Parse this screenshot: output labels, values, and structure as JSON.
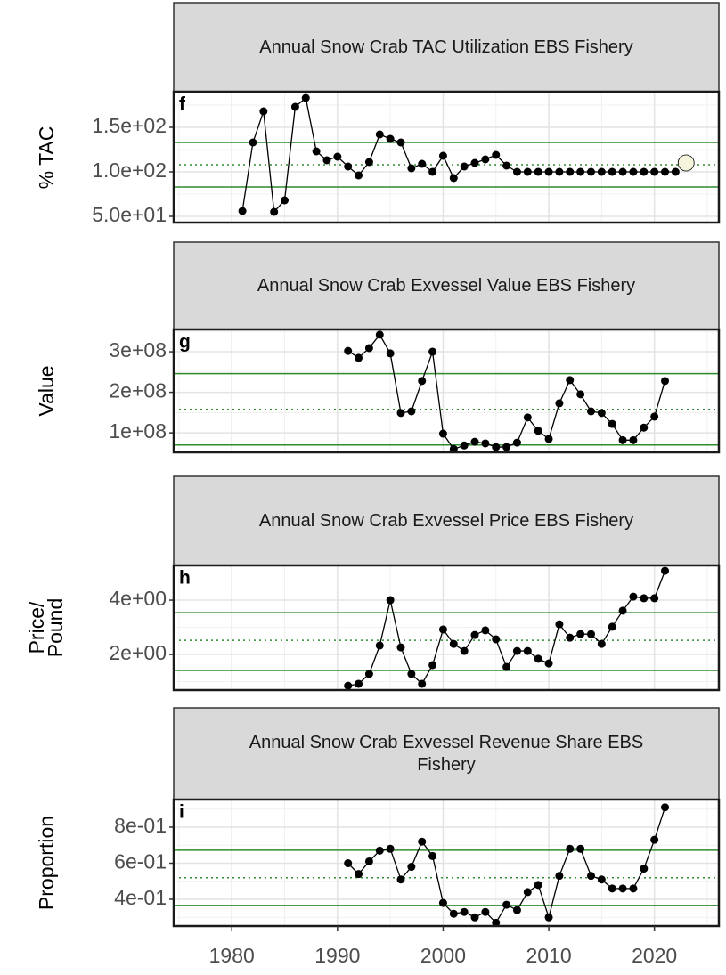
{
  "chart_data": [
    {
      "type": "line",
      "title": "Annual Snow Crab TAC Utilization EBS Fishery",
      "panel_label": "f",
      "y_label": "% TAC",
      "x": [
        1981,
        1982,
        1983,
        1984,
        1985,
        1986,
        1987,
        1988,
        1989,
        1990,
        1991,
        1992,
        1993,
        1994,
        1995,
        1996,
        1997,
        1998,
        1999,
        2000,
        2001,
        2002,
        2003,
        2004,
        2005,
        2006,
        2007,
        2008,
        2009,
        2010,
        2011,
        2012,
        2013,
        2014,
        2015,
        2016,
        2017,
        2018,
        2019,
        2020,
        2021,
        2022,
        2023
      ],
      "series": [
        {
          "color": "#000000",
          "values": [
            56,
            133,
            168,
            55,
            68,
            173,
            183,
            123,
            113,
            117,
            106,
            96,
            111,
            142,
            137,
            133,
            104,
            109,
            100,
            118,
            93,
            106,
            110,
            114,
            119,
            107,
            100,
            100,
            100,
            100,
            100,
            100,
            100,
            100,
            100,
            100,
            100,
            100,
            100,
            100,
            100,
            100,
            null
          ]
        },
        {
          "color": "#f5f5dc",
          "line": false,
          "values": [
            null,
            null,
            null,
            null,
            null,
            null,
            null,
            null,
            null,
            null,
            null,
            null,
            null,
            null,
            null,
            null,
            null,
            null,
            null,
            null,
            null,
            null,
            null,
            null,
            null,
            null,
            null,
            null,
            null,
            null,
            null,
            null,
            null,
            null,
            null,
            null,
            null,
            null,
            null,
            null,
            null,
            null,
            110
          ]
        }
      ],
      "xlim": [
        1974.5,
        2026.1
      ],
      "xticks": [
        1980,
        1990,
        2000,
        2010,
        2020
      ],
      "ylim": [
        43,
        190
      ],
      "yticks": [
        {
          "value": 50,
          "label": "5.0e+01"
        },
        {
          "value": 100,
          "label": "1.0e+02"
        },
        {
          "value": 150,
          "label": "1.5e+02"
        }
      ],
      "hlines": [
        {
          "value": 133,
          "color": "#2e8b2e",
          "style": "solid"
        },
        {
          "value": 108,
          "color": "#2e8b2e",
          "style": "dotted"
        },
        {
          "value": 83,
          "color": "#2e8b2e",
          "style": "solid"
        }
      ],
      "grid": true
    },
    {
      "type": "line",
      "title": "Annual Snow Crab Exvessel Value EBS Fishery",
      "panel_label": "g",
      "y_label": "Value",
      "x": [
        1991,
        1992,
        1993,
        1994,
        1995,
        1996,
        1997,
        1998,
        1999,
        2000,
        2001,
        2002,
        2003,
        2004,
        2005,
        2006,
        2007,
        2008,
        2009,
        2010,
        2011,
        2012,
        2013,
        2014,
        2015,
        2016,
        2017,
        2018,
        2019,
        2020,
        2021
      ],
      "series": [
        {
          "color": "#000000",
          "values": [
            302000000,
            285000000,
            309000000,
            342000000,
            296000000,
            149000000,
            153000000,
            228000000,
            300000000,
            98000000,
            60000000,
            69000000,
            78000000,
            74000000,
            65000000,
            65000000,
            76000000,
            138000000,
            105000000,
            85000000,
            173000000,
            230000000,
            195000000,
            153000000,
            149000000,
            122000000,
            82000000,
            82000000,
            113000000,
            140000000,
            228000000
          ]
        }
      ],
      "xlim": [
        1974.5,
        2026.1
      ],
      "xticks": [
        1980,
        1990,
        2000,
        2010,
        2020
      ],
      "ylim": [
        52000000,
        355000000
      ],
      "yticks": [
        {
          "value": 100000000,
          "label": "1e+08"
        },
        {
          "value": 200000000,
          "label": "2e+08"
        },
        {
          "value": 300000000,
          "label": "3e+08"
        }
      ],
      "hlines": [
        {
          "value": 246000000,
          "color": "#2e8b2e",
          "style": "solid"
        },
        {
          "value": 158000000,
          "color": "#2e8b2e",
          "style": "dotted"
        },
        {
          "value": 70000000,
          "color": "#2e8b2e",
          "style": "solid"
        }
      ],
      "grid": true
    },
    {
      "type": "line",
      "title": "Annual Snow Crab Exvessel Price EBS Fishery",
      "panel_label": "h",
      "y_label": "Price/\nPound",
      "x": [
        1991,
        1992,
        1993,
        1994,
        1995,
        1996,
        1997,
        1998,
        1999,
        2000,
        2001,
        2002,
        2003,
        2004,
        2005,
        2006,
        2007,
        2008,
        2009,
        2010,
        2011,
        2012,
        2013,
        2014,
        2015,
        2016,
        2017,
        2018,
        2019,
        2020,
        2021
      ],
      "series": [
        {
          "color": "#000000",
          "values": [
            0.85,
            0.92,
            1.28,
            2.33,
            4.0,
            2.26,
            1.28,
            0.92,
            1.61,
            2.92,
            2.39,
            2.13,
            2.72,
            2.89,
            2.56,
            1.54,
            2.13,
            2.13,
            1.84,
            1.67,
            3.11,
            2.62,
            2.75,
            2.75,
            2.39,
            3.02,
            3.61,
            4.13,
            4.07,
            4.07,
            5.08
          ]
        }
      ],
      "xlim": [
        1974.5,
        2026.1
      ],
      "xticks": [
        1980,
        1990,
        2000,
        2010,
        2020
      ],
      "ylim": [
        0.69,
        5.28
      ],
      "yticks": [
        {
          "value": 2,
          "label": "2e+00"
        },
        {
          "value": 4,
          "label": "4e+00"
        }
      ],
      "hlines": [
        {
          "value": 3.54,
          "color": "#2e8b2e",
          "style": "solid"
        },
        {
          "value": 2.52,
          "color": "#2e8b2e",
          "style": "dotted"
        },
        {
          "value": 1.41,
          "color": "#2e8b2e",
          "style": "solid"
        }
      ],
      "grid": true
    },
    {
      "type": "line",
      "title": "Annual Snow Crab Exvessel Revenue Share EBS Fishery",
      "panel_label": "i",
      "y_label": "Proportion",
      "x": [
        1991,
        1992,
        1993,
        1994,
        1995,
        1996,
        1997,
        1998,
        1999,
        2000,
        2001,
        2002,
        2003,
        2004,
        2005,
        2006,
        2007,
        2008,
        2009,
        2010,
        2011,
        2012,
        2013,
        2014,
        2015,
        2016,
        2017,
        2018,
        2019,
        2020,
        2021
      ],
      "series": [
        {
          "color": "#000000",
          "values": [
            0.6,
            0.54,
            0.61,
            0.67,
            0.68,
            0.51,
            0.58,
            0.72,
            0.64,
            0.38,
            0.32,
            0.33,
            0.3,
            0.33,
            0.27,
            0.37,
            0.34,
            0.44,
            0.48,
            0.3,
            0.53,
            0.68,
            0.68,
            0.53,
            0.51,
            0.46,
            0.46,
            0.46,
            0.57,
            0.73,
            0.91
          ]
        }
      ],
      "xlim": [
        1974.5,
        2026.1
      ],
      "xticks": [
        1980,
        1990,
        2000,
        2010,
        2020
      ],
      "ylim": [
        0.252,
        0.953
      ],
      "yticks": [
        {
          "value": 0.4,
          "label": "4e-01"
        },
        {
          "value": 0.6,
          "label": "6e-01"
        },
        {
          "value": 0.8,
          "label": "8e-01"
        }
      ],
      "hlines": [
        {
          "value": 0.672,
          "color": "#2e8b2e",
          "style": "solid"
        },
        {
          "value": 0.52,
          "color": "#2e8b2e",
          "style": "dotted"
        },
        {
          "value": 0.366,
          "color": "#2e8b2e",
          "style": "solid"
        }
      ],
      "grid": true
    }
  ]
}
